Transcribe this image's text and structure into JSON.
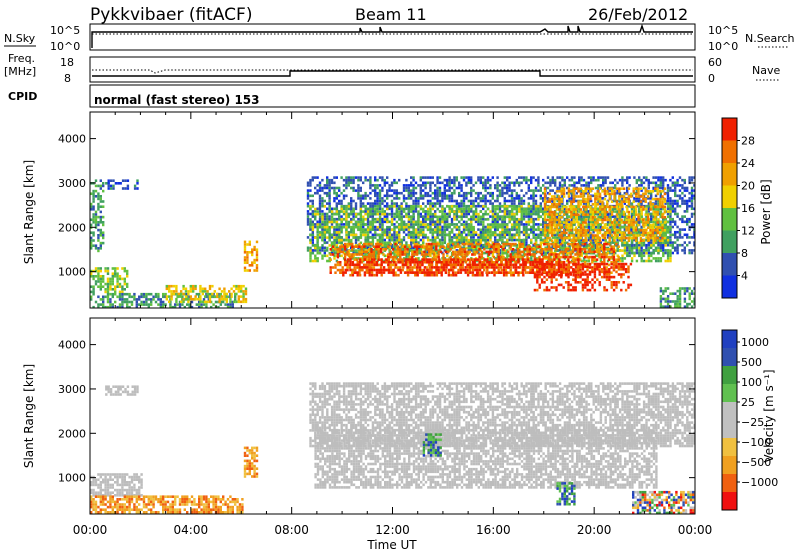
{
  "header": {
    "title": "Pykkvibaer (fitACF)",
    "beam": "Beam 11",
    "date": "26/Feb/2012"
  },
  "status_panels": {
    "nsky_label": "N.Sky",
    "nsky_ticks": [
      "10^5",
      "10^0"
    ],
    "nsearch_label": "N.Search",
    "nsearch_ticks": [
      "10^5",
      "10^0"
    ],
    "freq_label_1": "Freq.",
    "freq_label_2": "[MHz]",
    "freq_ticks": [
      "18",
      "8"
    ],
    "nave_label": "Nave",
    "nave_ticks": [
      "60",
      "0"
    ],
    "cpid_label": "CPID",
    "cpid_text": "normal (fast stereo) 153"
  },
  "colors": {
    "power_scale": [
      "#1030e0",
      "#3050b0",
      "#40a060",
      "#60c040",
      "#f0d000",
      "#f0a000",
      "#f07000",
      "#f02000"
    ],
    "velocity_scale": [
      "#f01010",
      "#f06010",
      "#f0a020",
      "#f0c040",
      "#c0c0c0",
      "#c0c0c0",
      "#60c050",
      "#40a040",
      "#3050b0",
      "#2040c0"
    ],
    "ground_scatter": "#bdbdbd"
  },
  "chart_data": [
    {
      "type": "heatmap",
      "name": "power",
      "ylabel": "Slant Range [km]",
      "ylim": [
        180,
        4600
      ],
      "y_ticks": [
        "4000",
        "3000",
        "2000",
        "1000"
      ],
      "colorbar_label": "Power [dB]",
      "colorbar_ticks": [
        "28",
        "24",
        "20",
        "16",
        "12",
        "8",
        "4"
      ],
      "colorbar_range": [
        0,
        32
      ],
      "regions": [
        {
          "t0": 0.0,
          "t1": 0.5,
          "r0": 1480,
          "r1": 3080,
          "level": 2
        },
        {
          "t0": 0.6,
          "t1": 1.9,
          "r0": 2850,
          "r1": 3080,
          "level": 1
        },
        {
          "t0": 0.0,
          "t1": 1.5,
          "r0": 560,
          "r1": 1100,
          "level": 3
        },
        {
          "t0": 0.0,
          "t1": 5.8,
          "r0": 200,
          "r1": 520,
          "level": 2
        },
        {
          "t0": 3.0,
          "t1": 6.2,
          "r0": 300,
          "r1": 700,
          "level": 4
        },
        {
          "t0": 6.1,
          "t1": 6.6,
          "r0": 1000,
          "r1": 1700,
          "level": 5
        },
        {
          "t0": 8.6,
          "t1": 24.0,
          "r0": 1400,
          "r1": 3150,
          "level": 1
        },
        {
          "t0": 8.7,
          "t1": 23.0,
          "r0": 1250,
          "r1": 2500,
          "level": 3
        },
        {
          "t0": 9.5,
          "t1": 21.0,
          "r0": 1000,
          "r1": 1650,
          "level": 6
        },
        {
          "t0": 10.0,
          "t1": 19.5,
          "r0": 900,
          "r1": 1300,
          "level": 7
        },
        {
          "t0": 17.6,
          "t1": 21.5,
          "r0": 600,
          "r1": 1200,
          "level": 7
        },
        {
          "t0": 18.0,
          "t1": 22.8,
          "r0": 1700,
          "r1": 2900,
          "level": 5
        },
        {
          "t0": 22.6,
          "t1": 24.0,
          "r0": 200,
          "r1": 650,
          "level": 2
        }
      ]
    },
    {
      "type": "heatmap",
      "name": "velocity",
      "ylabel": "Slant Range [km]",
      "xlabel": "Time UT",
      "ylim": [
        180,
        4600
      ],
      "y_ticks": [
        "4000",
        "3000",
        "2000",
        "1000"
      ],
      "x_ticks": [
        "00:00",
        "04:00",
        "08:00",
        "12:00",
        "16:00",
        "20:00",
        "00:00"
      ],
      "xlim": [
        0,
        24
      ],
      "colorbar_label": "Velocity [m s⁻¹]",
      "colorbar_ticks": [
        "1000",
        "500",
        "100",
        "25",
        "−25",
        "−100",
        "−500",
        "−1000"
      ],
      "regions": [
        {
          "t0": 0.6,
          "t1": 1.9,
          "r0": 2850,
          "r1": 3080,
          "kind": "ground"
        },
        {
          "t0": 0.0,
          "t1": 2.0,
          "r0": 600,
          "r1": 1100,
          "kind": "ground"
        },
        {
          "t0": 0.0,
          "t1": 6.0,
          "r0": 200,
          "r1": 600,
          "kind": "neg"
        },
        {
          "t0": 6.1,
          "t1": 6.6,
          "r0": 1000,
          "r1": 1700,
          "kind": "neg"
        },
        {
          "t0": 8.7,
          "t1": 24.0,
          "r0": 1700,
          "r1": 3150,
          "kind": "ground"
        },
        {
          "t0": 8.9,
          "t1": 22.5,
          "r0": 800,
          "r1": 2100,
          "kind": "ground"
        },
        {
          "t0": 13.2,
          "t1": 13.9,
          "r0": 1500,
          "r1": 2000,
          "kind": "pos"
        },
        {
          "t0": 18.5,
          "t1": 19.2,
          "r0": 400,
          "r1": 900,
          "kind": "pos"
        },
        {
          "t0": 21.5,
          "t1": 24.0,
          "r0": 200,
          "r1": 700,
          "kind": "mix"
        }
      ]
    }
  ]
}
